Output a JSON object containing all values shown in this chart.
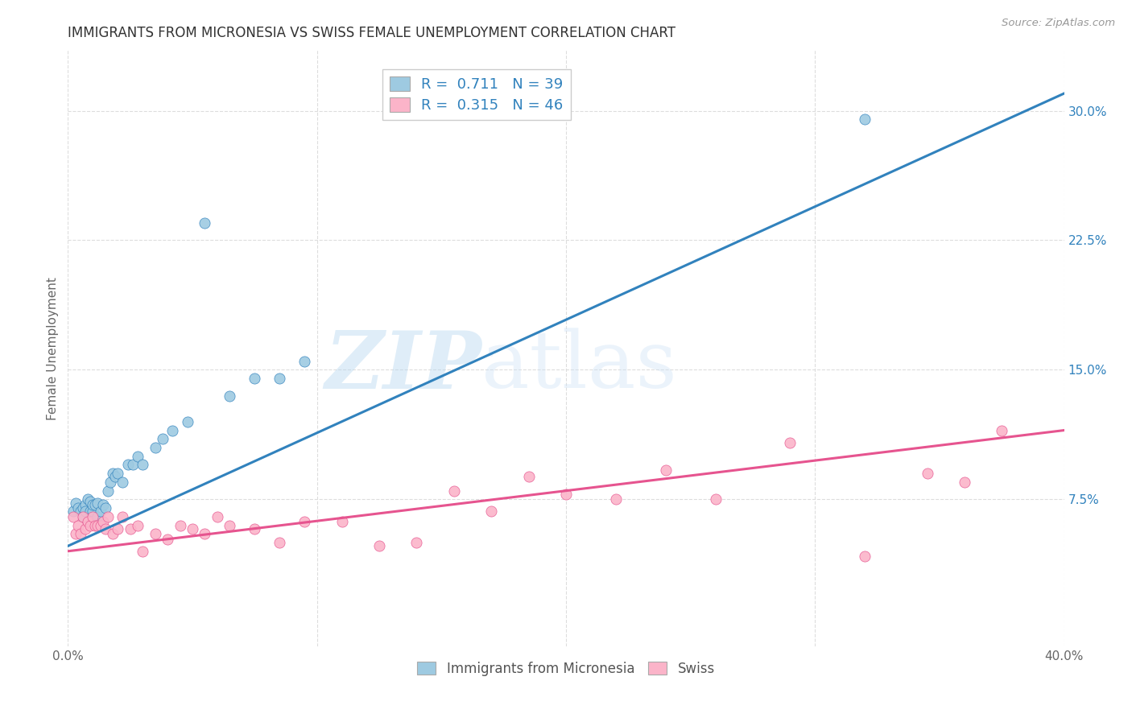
{
  "title": "IMMIGRANTS FROM MICRONESIA VS SWISS FEMALE UNEMPLOYMENT CORRELATION CHART",
  "source_text": "Source: ZipAtlas.com",
  "ylabel": "Female Unemployment",
  "xlim": [
    0.0,
    0.4
  ],
  "ylim": [
    -0.01,
    0.335
  ],
  "xticks": [
    0.0,
    0.1,
    0.2,
    0.3,
    0.4
  ],
  "xticklabels": [
    "0.0%",
    "",
    "",
    "",
    "40.0%"
  ],
  "yticks_right": [
    0.075,
    0.15,
    0.225,
    0.3
  ],
  "yticklabels_right": [
    "7.5%",
    "15.0%",
    "22.5%",
    "30.0%"
  ],
  "watermark_zip": "ZIP",
  "watermark_atlas": "atlas",
  "legend_r1": "0.711",
  "legend_n1": "39",
  "legend_r2": "0.315",
  "legend_n2": "46",
  "blue_color": "#9ecae1",
  "pink_color": "#fbb4c9",
  "blue_line_color": "#3182bd",
  "pink_line_color": "#e6548f",
  "label_blue": "Immigrants from Micronesia",
  "label_pink": "Swiss",
  "blue_scatter_x": [
    0.002,
    0.003,
    0.004,
    0.005,
    0.006,
    0.006,
    0.007,
    0.007,
    0.008,
    0.009,
    0.009,
    0.01,
    0.01,
    0.011,
    0.012,
    0.012,
    0.013,
    0.014,
    0.015,
    0.016,
    0.017,
    0.018,
    0.019,
    0.02,
    0.022,
    0.024,
    0.026,
    0.028,
    0.03,
    0.035,
    0.038,
    0.042,
    0.048,
    0.055,
    0.065,
    0.075,
    0.085,
    0.095,
    0.32
  ],
  "blue_scatter_y": [
    0.068,
    0.073,
    0.07,
    0.068,
    0.07,
    0.065,
    0.072,
    0.068,
    0.075,
    0.068,
    0.074,
    0.068,
    0.072,
    0.072,
    0.073,
    0.065,
    0.068,
    0.072,
    0.07,
    0.08,
    0.085,
    0.09,
    0.088,
    0.09,
    0.085,
    0.095,
    0.095,
    0.1,
    0.095,
    0.105,
    0.11,
    0.115,
    0.12,
    0.235,
    0.135,
    0.145,
    0.145,
    0.155,
    0.295
  ],
  "pink_scatter_x": [
    0.002,
    0.003,
    0.004,
    0.005,
    0.006,
    0.007,
    0.008,
    0.009,
    0.01,
    0.011,
    0.012,
    0.013,
    0.014,
    0.015,
    0.016,
    0.018,
    0.02,
    0.022,
    0.025,
    0.028,
    0.03,
    0.035,
    0.04,
    0.045,
    0.05,
    0.055,
    0.06,
    0.065,
    0.075,
    0.085,
    0.095,
    0.11,
    0.125,
    0.14,
    0.155,
    0.17,
    0.185,
    0.2,
    0.22,
    0.24,
    0.26,
    0.29,
    0.32,
    0.345,
    0.36,
    0.375
  ],
  "pink_scatter_y": [
    0.065,
    0.055,
    0.06,
    0.055,
    0.065,
    0.058,
    0.062,
    0.06,
    0.065,
    0.06,
    0.06,
    0.06,
    0.062,
    0.058,
    0.065,
    0.055,
    0.058,
    0.065,
    0.058,
    0.06,
    0.045,
    0.055,
    0.052,
    0.06,
    0.058,
    0.055,
    0.065,
    0.06,
    0.058,
    0.05,
    0.062,
    0.062,
    0.048,
    0.05,
    0.08,
    0.068,
    0.088,
    0.078,
    0.075,
    0.092,
    0.075,
    0.108,
    0.042,
    0.09,
    0.085,
    0.115
  ],
  "blue_line_x": [
    0.0,
    0.4
  ],
  "blue_line_y": [
    0.048,
    0.31
  ],
  "pink_line_x": [
    0.0,
    0.4
  ],
  "pink_line_y": [
    0.045,
    0.115
  ],
  "grid_color": "#dddddd",
  "background_color": "#ffffff",
  "title_fontsize": 12,
  "axis_label_fontsize": 11,
  "tick_fontsize": 11,
  "legend_fontsize": 13
}
